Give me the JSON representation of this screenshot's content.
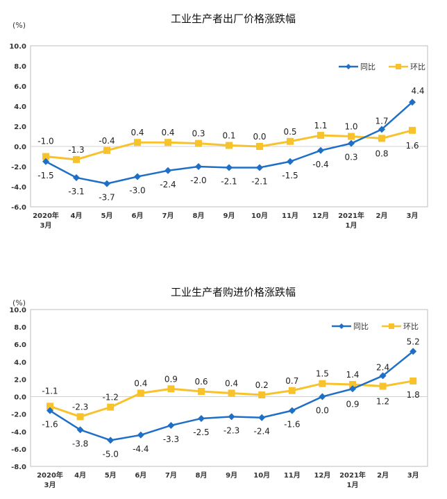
{
  "chart_data": [
    {
      "type": "line",
      "title": "工业生产者出厂价格涨跌幅",
      "unit": "(%)",
      "categories": [
        [
          "2020年",
          "3月"
        ],
        [
          "4月"
        ],
        [
          "5月"
        ],
        [
          "6月"
        ],
        [
          "7月"
        ],
        [
          "8月"
        ],
        [
          "9月"
        ],
        [
          "10月"
        ],
        [
          "11月"
        ],
        [
          "12月"
        ],
        [
          "2021年",
          "1月"
        ],
        [
          "2月"
        ],
        [
          "3月"
        ]
      ],
      "ylim": [
        -6.0,
        10.0
      ],
      "yticks": [
        "10.0",
        "8.0",
        "6.0",
        "4.0",
        "2.0",
        "0.0",
        "-2.0",
        "-4.0",
        "-6.0"
      ],
      "ytick_values": [
        10,
        8,
        6,
        4,
        2,
        0,
        -2,
        -4,
        -6
      ],
      "legend_position": "top-right",
      "series": [
        {
          "name": "同比",
          "color": "#1f6fc6",
          "marker": "diamond",
          "values": [
            -1.5,
            -3.1,
            -3.7,
            -3.0,
            -2.4,
            -2.0,
            -2.1,
            -2.1,
            -1.5,
            -0.4,
            0.3,
            1.7,
            4.4
          ],
          "labels": [
            "-1.5",
            "-3.1",
            "-3.7",
            "-3.0",
            "-2.4",
            "-2.0",
            "-2.1",
            "-2.1",
            "-1.5",
            "-0.4",
            "0.3",
            "1.7",
            "4.4"
          ]
        },
        {
          "name": "环比",
          "color": "#f7c22b",
          "marker": "square",
          "values": [
            -1.0,
            -1.3,
            -0.4,
            0.4,
            0.4,
            0.3,
            0.1,
            0.0,
            0.5,
            1.1,
            1.0,
            0.8,
            1.6
          ],
          "labels": [
            "-1.0",
            "-1.3",
            "-0.4",
            "0.4",
            "0.4",
            "0.3",
            "0.1",
            "0.0",
            "0.5",
            "1.1",
            "1.0",
            "0.8",
            "1.6"
          ]
        }
      ]
    },
    {
      "type": "line",
      "title": "工业生产者购进价格涨跌幅",
      "unit": "(%)",
      "categories": [
        [
          "2020年",
          "3月"
        ],
        [
          "4月"
        ],
        [
          "5月"
        ],
        [
          "6月"
        ],
        [
          "7月"
        ],
        [
          "8月"
        ],
        [
          "9月"
        ],
        [
          "10月"
        ],
        [
          "11月"
        ],
        [
          "12月"
        ],
        [
          "2021年",
          "1月"
        ],
        [
          "2月"
        ],
        [
          "3月"
        ]
      ],
      "ylim": [
        -8.0,
        10.0
      ],
      "yticks": [
        "10.0",
        "8.0",
        "6.0",
        "4.0",
        "2.0",
        "0.0",
        "-2.0",
        "-4.0",
        "-6.0",
        "-8.0"
      ],
      "ytick_values": [
        10,
        8,
        6,
        4,
        2,
        0,
        -2,
        -4,
        -6,
        -8
      ],
      "legend_position": "top-right",
      "series": [
        {
          "name": "同比",
          "color": "#1f6fc6",
          "marker": "diamond",
          "values": [
            -1.6,
            -3.8,
            -5.0,
            -4.4,
            -3.3,
            -2.5,
            -2.3,
            -2.4,
            -1.6,
            0.0,
            0.9,
            2.4,
            5.2
          ],
          "labels": [
            "-1.6",
            "-3.8",
            "-5.0",
            "-4.4",
            "-3.3",
            "-2.5",
            "-2.3",
            "-2.4",
            "-1.6",
            "0.0",
            "0.9",
            "2.4",
            "5.2"
          ]
        },
        {
          "name": "环比",
          "color": "#f7c22b",
          "marker": "square",
          "values": [
            -1.1,
            -2.3,
            -1.2,
            0.4,
            0.9,
            0.6,
            0.4,
            0.2,
            0.7,
            1.5,
            1.4,
            1.2,
            1.8
          ],
          "labels": [
            "-1.1",
            "-2.3",
            "-1.2",
            "0.4",
            "0.9",
            "0.6",
            "0.4",
            "0.2",
            "0.7",
            "1.5",
            "1.4",
            "1.2",
            "1.8"
          ]
        }
      ]
    }
  ]
}
